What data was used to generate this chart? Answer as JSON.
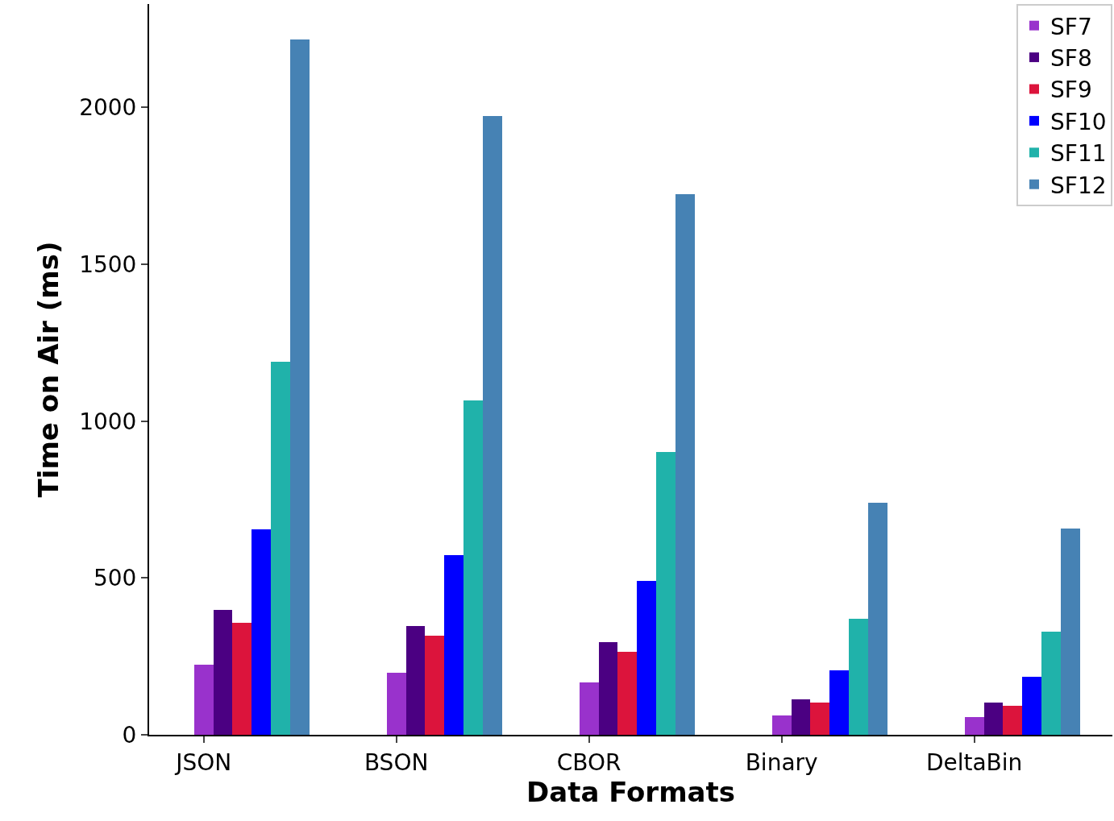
{
  "chart_data": {
    "type": "bar",
    "xlabel": "Data Formats",
    "ylabel": "Time on Air (ms)",
    "categories": [
      "JSON",
      "BSON",
      "CBOR",
      "Binary",
      "DeltaBin"
    ],
    "series": [
      {
        "name": "SF7",
        "color": "#9932cc",
        "values": [
          224,
          198,
          167,
          62,
          57
        ]
      },
      {
        "name": "SF8",
        "color": "#4b0082",
        "values": [
          398,
          347,
          296,
          113,
          103
        ]
      },
      {
        "name": "SF9",
        "color": "#dc143c",
        "values": [
          357,
          316,
          265,
          103,
          93
        ]
      },
      {
        "name": "SF10",
        "color": "#0000ff",
        "values": [
          655,
          573,
          491,
          206,
          185
        ]
      },
      {
        "name": "SF11",
        "color": "#20b2aa",
        "values": [
          1190,
          1067,
          902,
          370,
          329
        ]
      },
      {
        "name": "SF12",
        "color": "#4682b4",
        "values": [
          2218,
          1972,
          1725,
          740,
          658
        ]
      }
    ],
    "ylim": [
      0,
      2330
    ],
    "yticks": [
      0,
      500,
      1000,
      1500,
      2000
    ],
    "legend": "top right"
  }
}
